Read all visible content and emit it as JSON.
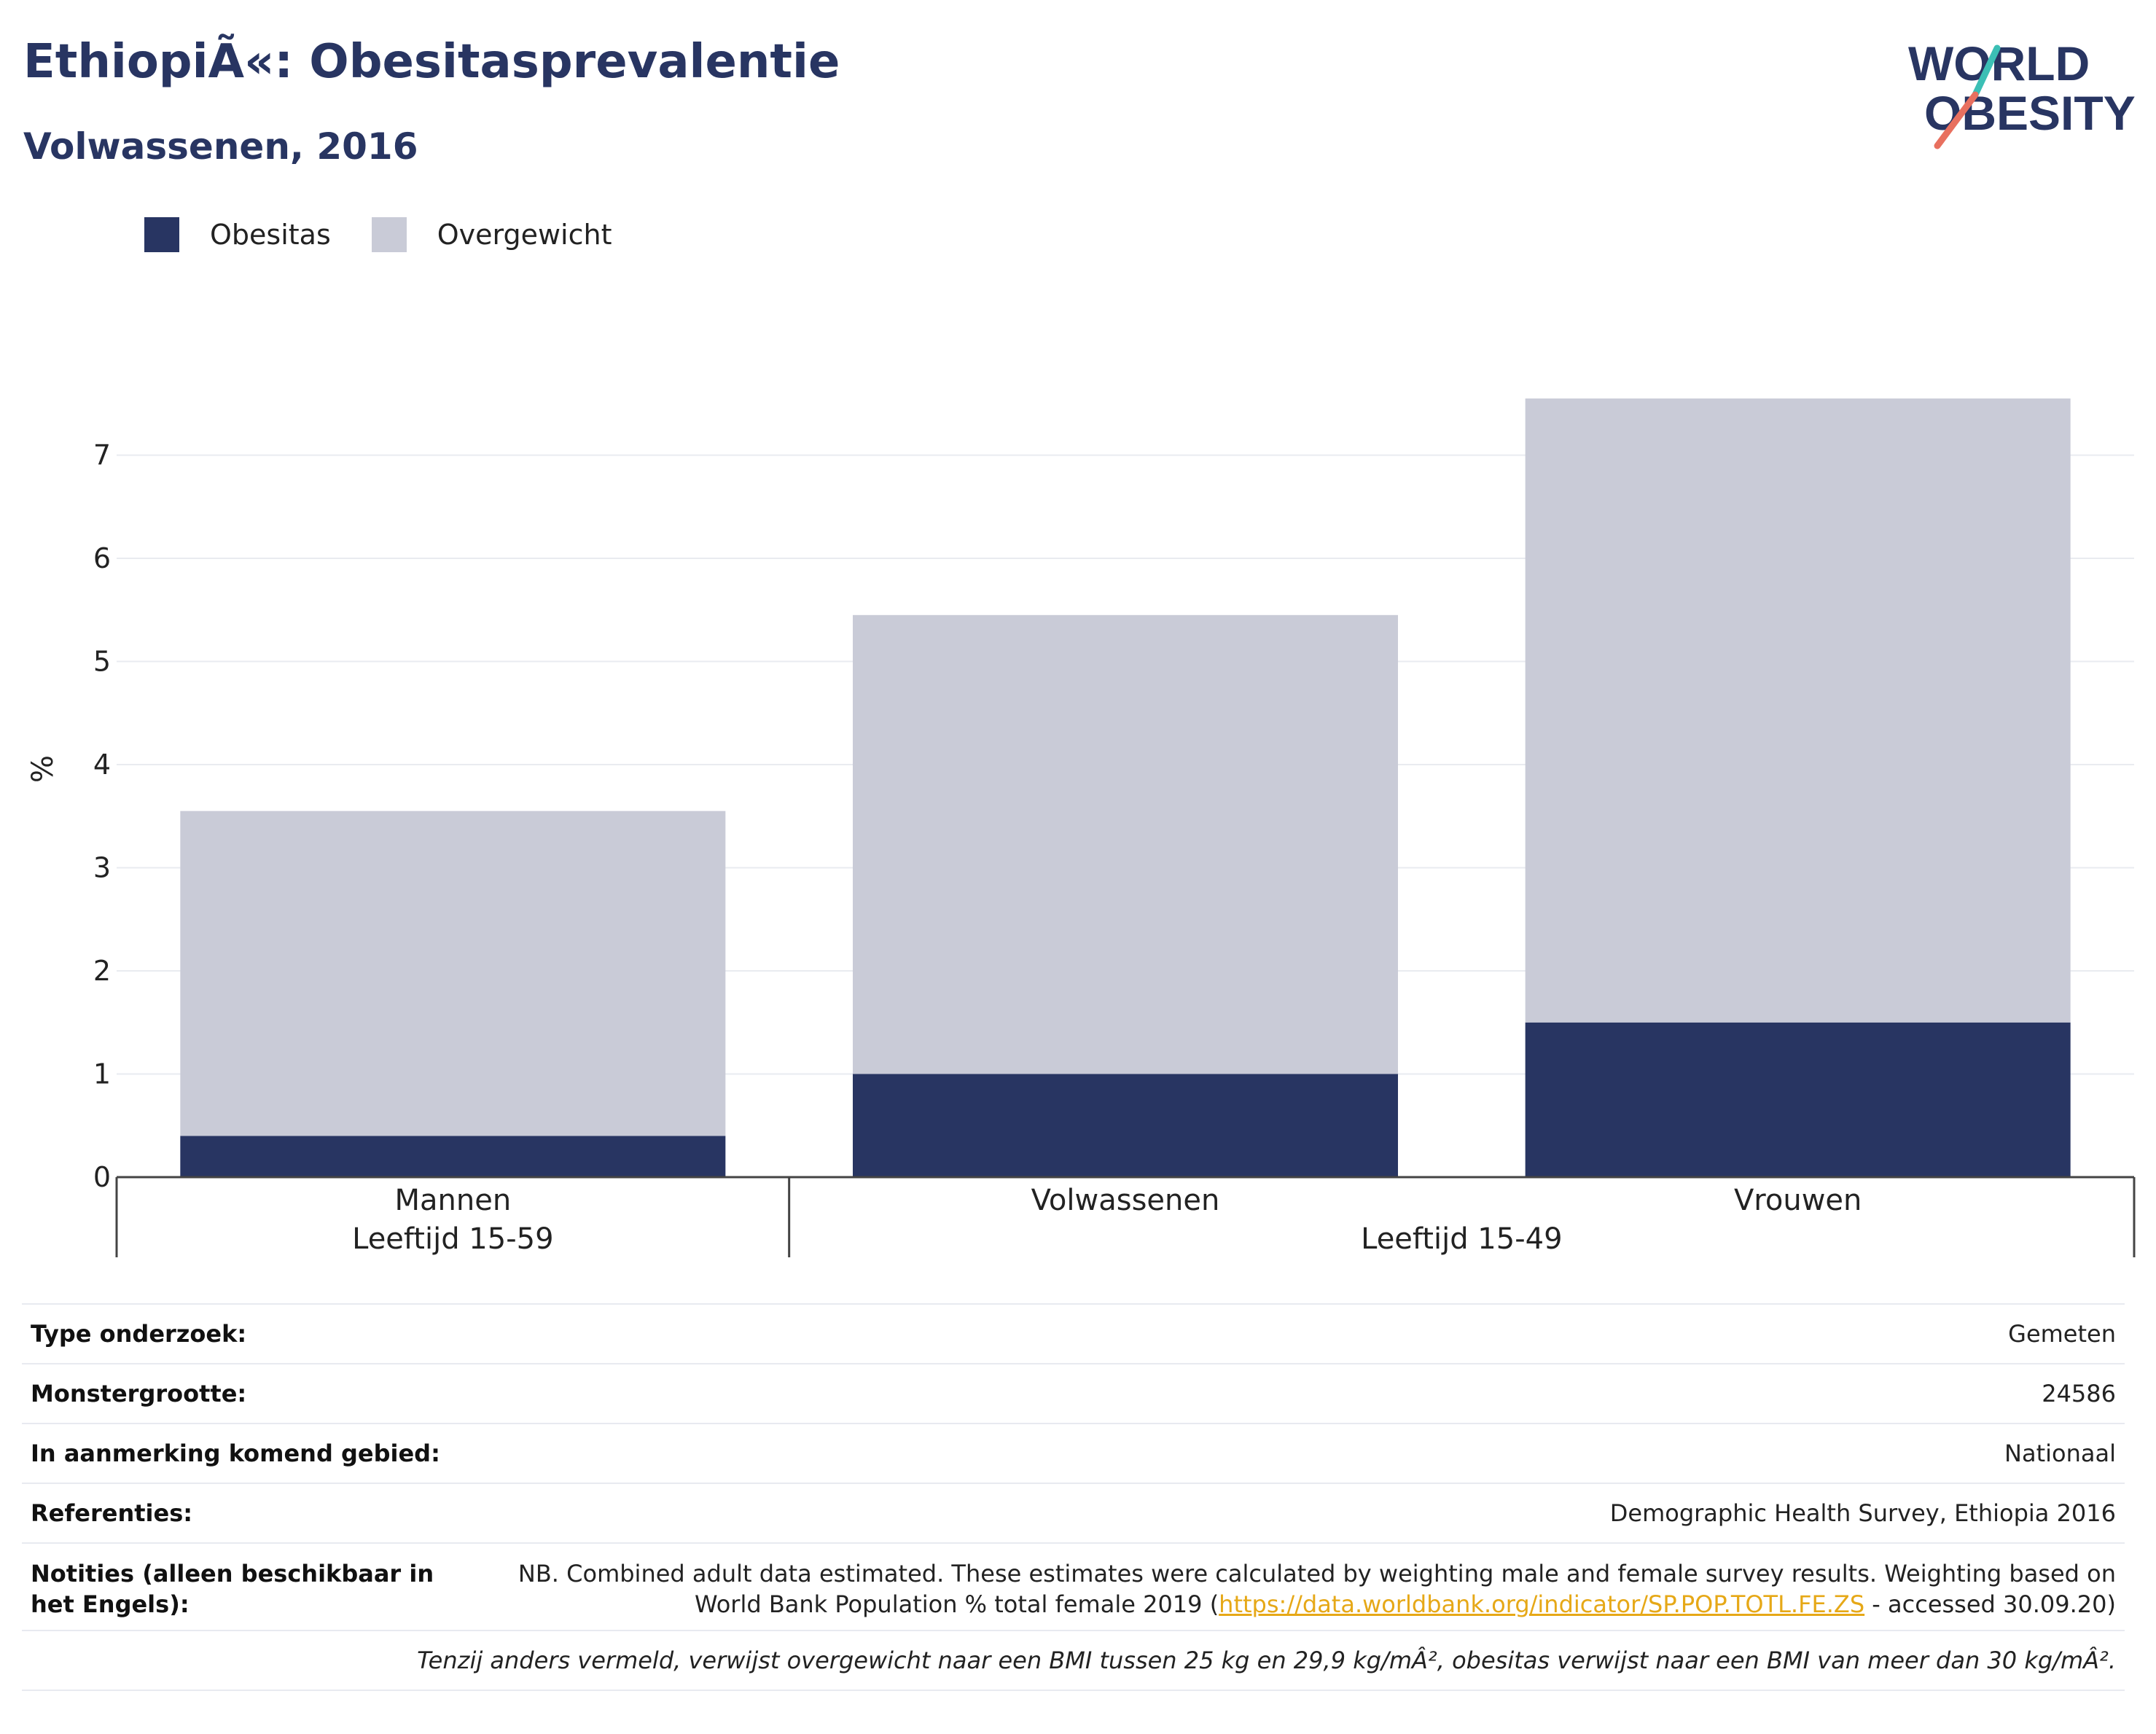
{
  "header": {
    "title": "EthiopiÃ«: Obesitasprevalentie",
    "subtitle": "Volwassenen, 2016"
  },
  "logo": {
    "line1": "WORLD",
    "line2": "OBESITY",
    "colors": {
      "text": "#283562",
      "slash_teal": "#3bbfb5",
      "slash_coral": "#e8705f"
    }
  },
  "legend": {
    "items": [
      {
        "label": "Obesitas",
        "color": "#283562"
      },
      {
        "label": "Overgewicht",
        "color": "#c9cbd7"
      }
    ]
  },
  "chart_data": {
    "type": "bar",
    "stacked": true,
    "ylabel": "%",
    "ylim": [
      0,
      7.6
    ],
    "yticks": [
      0,
      1,
      2,
      3,
      4,
      5,
      6,
      7
    ],
    "grid": true,
    "categories": [
      "Mannen",
      "Volwassenen",
      "Vrouwen"
    ],
    "groups": [
      {
        "label": "Leeftijd 15-59",
        "categories": [
          "Mannen"
        ]
      },
      {
        "label": "Leeftijd 15-49",
        "categories": [
          "Volwassenen",
          "Vrouwen"
        ]
      }
    ],
    "series": [
      {
        "name": "Obesitas",
        "color": "#283562",
        "values": [
          0.4,
          1.0,
          1.5
        ]
      },
      {
        "name": "Overgewicht",
        "color": "#c9cbd7",
        "values": [
          3.15,
          4.45,
          6.05
        ]
      }
    ]
  },
  "meta": {
    "rows": [
      {
        "key": "Type onderzoek:",
        "value": "Gemeten"
      },
      {
        "key": "Monstergrootte:",
        "value": "24586"
      },
      {
        "key": "In aanmerking komend gebied:",
        "value": "Nationaal"
      },
      {
        "key": "Referenties:",
        "value": "Demographic Health Survey, Ethiopia 2016"
      }
    ],
    "notes": {
      "key": "Notities (alleen beschikbaar in het Engels):",
      "text_before": "NB. Combined adult data estimated. These estimates were calculated by weighting male and female survey results. Weighting based on World Bank Population % total female 2019 (",
      "link": "https://data.worldbank.org/indicator/SP.POP.TOTL.FE.ZS",
      "text_after": " - accessed 30.09.20)"
    },
    "footnote": "Tenzij anders vermeld, verwijst overgewicht naar een BMI tussen 25 kg en 29,9 kg/mÂ², obesitas verwijst naar een BMI van meer dan 30 kg/mÂ²."
  }
}
